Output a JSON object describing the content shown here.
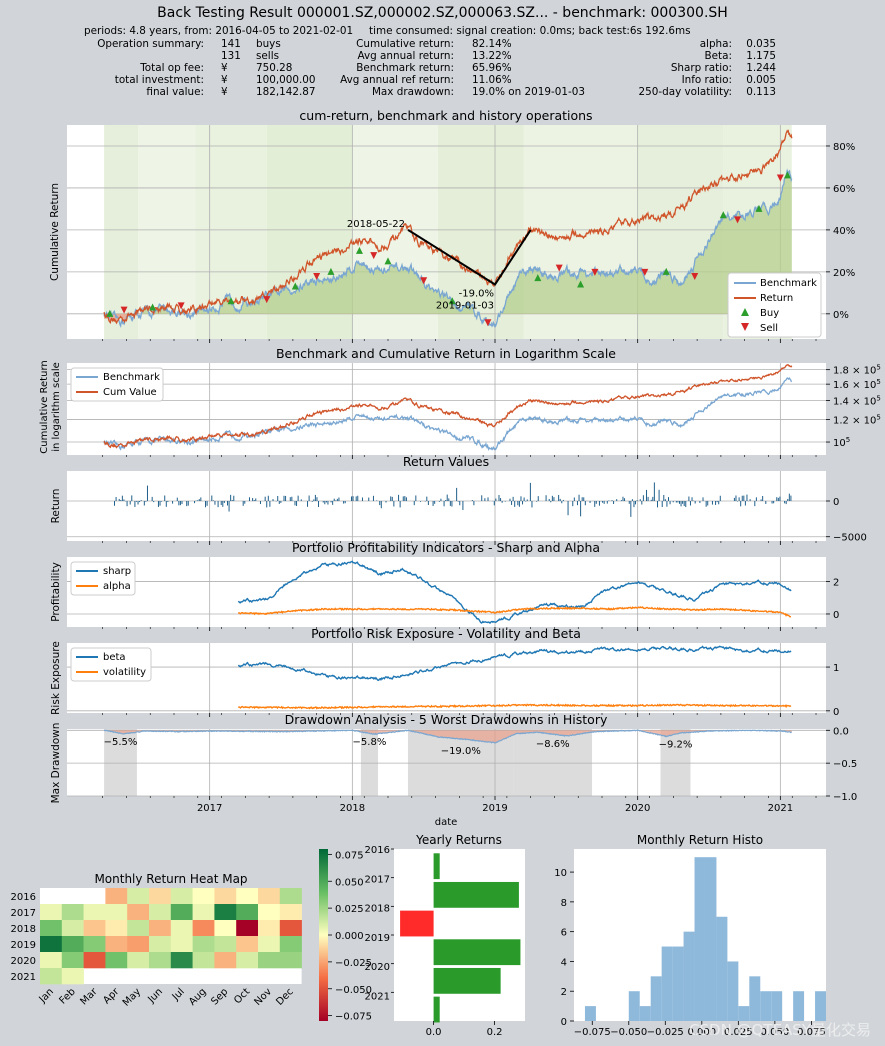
{
  "title": "Back Testing Result 000001.SZ,000002.SZ,000063.SZ... - benchmark: 000300.SH",
  "summary": {
    "periods": "periods: 4.8 years, from: 2016-04-05 to 2021-02-01",
    "time_consumed": "time consumed:   signal creation: 0.0ms;  back test:6s 192.6ms",
    "col1": [
      {
        "label": "Operation summary:",
        "v1": "141",
        "v2": "buys"
      },
      {
        "label": "",
        "v1": "131",
        "v2": "sells"
      },
      {
        "label": "Total op fee:",
        "v1": "¥",
        "v2": "750.28"
      },
      {
        "label": "total investment:",
        "v1": "¥",
        "v2": "100,000.00"
      },
      {
        "label": "final value:",
        "v1": "¥",
        "v2": "182,142.87"
      }
    ],
    "col2": [
      {
        "label": "Cumulative return:",
        "value": "82.14%"
      },
      {
        "label": "Avg annual return:",
        "value": "13.22%"
      },
      {
        "label": "Benchmark return:",
        "value": "65.96%"
      },
      {
        "label": "Avg annual ref return:",
        "value": "11.06%"
      },
      {
        "label": "Max drawdown:",
        "value": "19.0% on 2019-01-03"
      }
    ],
    "col3": [
      {
        "label": "alpha:",
        "value": "0.035"
      },
      {
        "label": "Beta:",
        "value": "1.175"
      },
      {
        "label": "Sharp ratio:",
        "value": "1.244"
      },
      {
        "label": "Info ratio:",
        "value": "0.005"
      },
      {
        "label": "250-day volatility:",
        "value": "0.113"
      }
    ]
  },
  "colors": {
    "benchmark": "#7aa7d2",
    "return": "#d0552b",
    "buy": "#2c9e2c",
    "sell": "#d62728",
    "series_blue": "#1f77b4",
    "series_orange": "#ff7f0e",
    "bar_return": "#1f5f8b",
    "green_fill": "#b6cf8f",
    "red_fill": "#e8a08a",
    "shade": "#dcdcdc",
    "hist": "#8fb9db",
    "hbar_green": "#2a9a2a",
    "hbar_red": "#ff2a2a"
  },
  "chart_data": [
    {
      "type": "line",
      "id": "cumret",
      "title": "cum-return, benchmark and history operations",
      "ylabel": "Cumulative Return",
      "x_range": [
        2016.0,
        2021.32
      ],
      "ylim": [
        -0.12,
        0.9
      ],
      "yticks": [
        {
          "v": 0,
          "label": "0%"
        },
        {
          "v": 0.2,
          "label": "20%"
        },
        {
          "v": 0.4,
          "label": "40%"
        },
        {
          "v": 0.6,
          "label": "60%"
        },
        {
          "v": 0.8,
          "label": "80%"
        }
      ],
      "legend": [
        "Benchmark",
        "Return",
        "Buy",
        "Sell"
      ],
      "legend_loc": "lower-right",
      "dates": [
        2016.26,
        2016.35,
        2016.5,
        2016.7,
        2016.9,
        2017.1,
        2017.3,
        2017.5,
        2017.7,
        2017.9,
        2018.05,
        2018.2,
        2018.39,
        2018.55,
        2018.7,
        2018.85,
        2019.0,
        2019.15,
        2019.25,
        2019.4,
        2019.6,
        2019.8,
        2020.0,
        2020.1,
        2020.2,
        2020.3,
        2020.5,
        2020.6,
        2020.8,
        2020.9,
        2021.0,
        2021.05,
        2021.08
      ],
      "benchmark": [
        0.0,
        -0.04,
        0.0,
        0.02,
        0.0,
        0.05,
        0.06,
        0.1,
        0.15,
        0.17,
        0.25,
        0.2,
        0.22,
        0.12,
        0.05,
        0.02,
        -0.05,
        0.15,
        0.22,
        0.18,
        0.2,
        0.18,
        0.22,
        0.15,
        0.2,
        0.15,
        0.35,
        0.45,
        0.48,
        0.5,
        0.55,
        0.7,
        0.65
      ],
      "return": [
        0.0,
        -0.03,
        0.02,
        0.03,
        0.02,
        0.07,
        0.05,
        0.12,
        0.25,
        0.3,
        0.35,
        0.32,
        0.4,
        0.3,
        0.26,
        0.2,
        0.14,
        0.33,
        0.4,
        0.36,
        0.38,
        0.4,
        0.45,
        0.45,
        0.47,
        0.5,
        0.62,
        0.63,
        0.68,
        0.7,
        0.78,
        0.87,
        0.83
      ],
      "annotations": [
        {
          "text": "2018-05-22",
          "x": 2018.39,
          "y": 0.4
        },
        {
          "text": "-19.0%",
          "x": 2019.0,
          "y": 0.14
        },
        {
          "text": "2019-01-03",
          "x": 2019.0,
          "y": 0.14
        }
      ],
      "drawdown_line": [
        {
          "x": 2018.39,
          "y": 0.4
        },
        {
          "x": 2019.0,
          "y": 0.14
        },
        {
          "x": 2019.25,
          "y": 0.4
        }
      ],
      "buys": [
        {
          "x": 2016.3,
          "y": 0.0
        },
        {
          "x": 2016.6,
          "y": 0.03
        },
        {
          "x": 2017.15,
          "y": 0.06
        },
        {
          "x": 2017.6,
          "y": 0.13
        },
        {
          "x": 2017.85,
          "y": 0.2
        },
        {
          "x": 2018.05,
          "y": 0.3
        },
        {
          "x": 2018.25,
          "y": 0.25
        },
        {
          "x": 2018.7,
          "y": 0.06
        },
        {
          "x": 2019.3,
          "y": 0.17
        },
        {
          "x": 2019.6,
          "y": 0.14
        },
        {
          "x": 2020.2,
          "y": 0.2
        },
        {
          "x": 2020.6,
          "y": 0.47
        },
        {
          "x": 2020.85,
          "y": 0.5
        },
        {
          "x": 2021.05,
          "y": 0.66
        }
      ],
      "sells": [
        {
          "x": 2016.4,
          "y": 0.02
        },
        {
          "x": 2016.8,
          "y": 0.04
        },
        {
          "x": 2017.4,
          "y": 0.07
        },
        {
          "x": 2017.75,
          "y": 0.18
        },
        {
          "x": 2018.15,
          "y": 0.28
        },
        {
          "x": 2018.5,
          "y": 0.16
        },
        {
          "x": 2018.95,
          "y": -0.04
        },
        {
          "x": 2019.45,
          "y": 0.22
        },
        {
          "x": 2019.7,
          "y": 0.2
        },
        {
          "x": 2020.05,
          "y": 0.2
        },
        {
          "x": 2020.4,
          "y": 0.18
        },
        {
          "x": 2020.7,
          "y": 0.45
        },
        {
          "x": 2021.0,
          "y": 0.65
        }
      ]
    },
    {
      "type": "line",
      "id": "logscale",
      "title": "Benchmark and Cumulative Return in Logarithm Scale",
      "ylabel": "Cumulative Return in logarithm scale",
      "ylim_log": [
        90000,
        190000
      ],
      "yticks": [
        {
          "v": 100000,
          "base": "10",
          "exp": "5"
        },
        {
          "v": 120000,
          "base": "1.2 × 10",
          "exp": "5"
        },
        {
          "v": 140000,
          "base": "1.4 × 10",
          "exp": "5"
        },
        {
          "v": 160000,
          "base": "1.6 × 10",
          "exp": "5"
        },
        {
          "v": 180000,
          "base": "1.8 × 10",
          "exp": "5"
        }
      ],
      "legend": [
        "Benchmark",
        "Cum Value"
      ],
      "legend_loc": "upper-left",
      "note": "series derived from cumulative returns (value = 100000 × (1 + r))"
    },
    {
      "type": "bar",
      "id": "returns",
      "title": "Return Values",
      "ylabel": "Return",
      "ylim": [
        -5600,
        4200
      ],
      "yticks": [
        {
          "v": 0,
          "label": "0"
        },
        {
          "v": -5000,
          "label": "−5000"
        }
      ]
    },
    {
      "type": "line",
      "id": "profit",
      "title": "Portfolio Profitability Indicators - Sharp and Alpha",
      "ylabel": "Profitability",
      "ylim": [
        -0.8,
        3.5
      ],
      "yticks": [
        {
          "v": 0,
          "label": "0"
        },
        {
          "v": 2,
          "label": "2"
        }
      ],
      "legend": [
        "sharp",
        "alpha"
      ],
      "legend_loc": "upper-left",
      "x": [
        2017.2,
        2017.4,
        2017.6,
        2017.8,
        2018.0,
        2018.2,
        2018.35,
        2018.5,
        2018.7,
        2018.9,
        2019.0,
        2019.2,
        2019.4,
        2019.6,
        2019.8,
        2020.0,
        2020.2,
        2020.4,
        2020.6,
        2020.8,
        2021.0,
        2021.08
      ],
      "sharp": [
        0.8,
        0.9,
        2.2,
        3.0,
        3.1,
        2.5,
        2.8,
        2.1,
        1.0,
        -0.4,
        -0.6,
        0.2,
        0.6,
        0.5,
        1.5,
        2.0,
        1.4,
        0.9,
        1.8,
        2.0,
        1.9,
        1.4
      ],
      "alpha": [
        0.05,
        0.02,
        0.2,
        0.3,
        0.3,
        0.3,
        0.3,
        0.3,
        0.25,
        0.15,
        0.1,
        0.3,
        0.35,
        0.35,
        0.3,
        0.4,
        0.3,
        0.25,
        0.3,
        0.2,
        0.1,
        -0.2
      ]
    },
    {
      "type": "line",
      "id": "risk",
      "title": "Portfolio Risk Exposure - Volatility and Beta",
      "ylabel": "Risk Exposure",
      "ylim": [
        -0.05,
        1.55
      ],
      "yticks": [
        {
          "v": 0,
          "label": "0"
        },
        {
          "v": 1,
          "label": "1"
        }
      ],
      "legend": [
        "beta",
        "volatility"
      ],
      "legend_loc": "upper-left",
      "x": [
        2017.2,
        2017.4,
        2017.6,
        2017.8,
        2018.0,
        2018.2,
        2018.4,
        2018.6,
        2018.8,
        2019.0,
        2019.2,
        2019.4,
        2019.6,
        2019.8,
        2020.0,
        2020.2,
        2020.4,
        2020.6,
        2020.8,
        2021.0,
        2021.08
      ],
      "beta": [
        1.05,
        1.08,
        0.95,
        0.8,
        0.72,
        0.75,
        0.85,
        1.0,
        1.12,
        1.2,
        1.35,
        1.35,
        1.38,
        1.4,
        1.4,
        1.45,
        1.4,
        1.42,
        1.4,
        1.38,
        1.35
      ],
      "volatility": [
        0.08,
        0.08,
        0.07,
        0.07,
        0.08,
        0.09,
        0.1,
        0.1,
        0.11,
        0.12,
        0.13,
        0.13,
        0.12,
        0.12,
        0.12,
        0.13,
        0.13,
        0.12,
        0.12,
        0.11,
        0.11
      ]
    },
    {
      "type": "area",
      "id": "drawdown",
      "title": "Drawdown Analysis - 5 Worst Drawdowns in History",
      "ylabel": "Max Drawdown",
      "xlabel": "date",
      "ylim": [
        -1.0,
        0.02
      ],
      "yticks": [
        {
          "v": 0,
          "label": "0.0"
        },
        {
          "v": -0.5,
          "label": "−0.5"
        },
        {
          "v": -1,
          "label": "−1.0"
        }
      ],
      "x": [
        2016.26,
        2016.4,
        2016.55,
        2016.8,
        2017.0,
        2017.5,
        2018.0,
        2018.15,
        2018.39,
        2018.6,
        2018.8,
        2019.0,
        2019.15,
        2019.3,
        2019.5,
        2019.7,
        2020.0,
        2020.2,
        2020.3,
        2020.5,
        2020.8,
        2021.0,
        2021.08
      ],
      "dd": [
        0.0,
        -0.055,
        -0.01,
        -0.02,
        -0.01,
        -0.02,
        0.0,
        -0.058,
        0.0,
        -0.1,
        -0.14,
        -0.19,
        -0.05,
        -0.03,
        -0.086,
        -0.02,
        0.0,
        -0.092,
        -0.04,
        -0.01,
        0.0,
        -0.01,
        -0.03
      ],
      "worst": [
        {
          "start": 2016.26,
          "end": 2016.49,
          "label": "−5.5%",
          "y": -0.055
        },
        {
          "start": 2018.06,
          "end": 2018.18,
          "label": "−5.8%",
          "y": -0.058
        },
        {
          "start": 2018.39,
          "end": 2019.13,
          "label": "−19.0%",
          "y": -0.19
        },
        {
          "start": 2019.13,
          "end": 2019.68,
          "label": "−8.6%",
          "y": -0.086
        },
        {
          "start": 2020.16,
          "end": 2020.37,
          "label": "−9.2%",
          "y": -0.092
        }
      ],
      "xticks": [
        {
          "v": 2017,
          "label": "2017"
        },
        {
          "v": 2018,
          "label": "2018"
        },
        {
          "v": 2019,
          "label": "2019"
        },
        {
          "v": 2020,
          "label": "2020"
        },
        {
          "v": 2021,
          "label": "2021"
        }
      ]
    },
    {
      "type": "heatmap",
      "id": "heatmap",
      "title": "Monthly Return Heat Map",
      "years": [
        "2016",
        "2017",
        "2018",
        "2019",
        "2020",
        "2021"
      ],
      "months": [
        "Jan",
        "Feb",
        "Mar",
        "Apr",
        "May",
        "Jun",
        "Jul",
        "Aug",
        "Sep",
        "Oct",
        "Nov",
        "Dec"
      ],
      "values": [
        [
          null,
          null,
          null,
          -0.02,
          0.01,
          -0.01,
          0.01,
          0.0,
          -0.01,
          0.0,
          -0.01,
          0.02
        ],
        [
          0.005,
          0.02,
          0.005,
          0.005,
          -0.02,
          0.01,
          0.045,
          0.005,
          0.065,
          0.045,
          0.0,
          -0.005
        ],
        [
          0.035,
          0.01,
          -0.015,
          -0.005,
          0.015,
          -0.02,
          0.005,
          -0.03,
          0.0,
          -0.075,
          -0.005,
          -0.045
        ],
        [
          0.07,
          0.045,
          0.03,
          -0.02,
          -0.025,
          0.01,
          0.005,
          0.02,
          0.015,
          -0.015,
          0.005,
          0.03
        ],
        [
          0.005,
          0.03,
          -0.045,
          0.035,
          0.01,
          0.02,
          0.06,
          0.015,
          -0.02,
          0.01,
          0.025,
          0.025
        ],
        [
          0.015,
          0.005,
          null,
          null,
          null,
          null,
          null,
          null,
          null,
          null,
          null,
          null
        ]
      ],
      "colorbar": {
        "ticks": [
          "0.075",
          "0.050",
          "0.025",
          "0.000",
          "−0.025",
          "−0.050",
          "−0.075"
        ]
      }
    },
    {
      "type": "bar",
      "id": "yearly",
      "title": "Yearly Returns",
      "orientation": "horizontal",
      "categories": [
        "2016",
        "2017",
        "2018",
        "2019",
        "2020",
        "2021"
      ],
      "values": [
        0.02,
        0.28,
        -0.11,
        0.285,
        0.22,
        0.02
      ],
      "xticks": [
        "0.0",
        "0.2"
      ],
      "xlim": [
        -0.13,
        0.3
      ]
    },
    {
      "type": "bar",
      "id": "histo",
      "title": "Monthly Return Histo",
      "bins": [
        -0.0875,
        -0.08,
        -0.0725,
        -0.065,
        -0.0575,
        -0.05,
        -0.0425,
        -0.035,
        -0.0275,
        -0.02,
        -0.0125,
        -0.005,
        0.0025,
        0.01,
        0.0175,
        0.025,
        0.0325,
        0.04,
        0.0475,
        0.055,
        0.0625,
        0.07,
        0.0775,
        0.085
      ],
      "counts": [
        0,
        1,
        0,
        0,
        0,
        2,
        1,
        3,
        5,
        5,
        6,
        11,
        11,
        7,
        4,
        1,
        3,
        2,
        2,
        0,
        2,
        0,
        2
      ],
      "xticks": [
        "−0.075",
        "−0.050",
        "−0.025",
        "0.000",
        "0.025",
        "0.050",
        "0.075"
      ],
      "yticks": [
        "0",
        "2",
        "4",
        "6",
        "8",
        "10"
      ]
    }
  ],
  "watermark": "CSDN @QTEASY量化交易"
}
